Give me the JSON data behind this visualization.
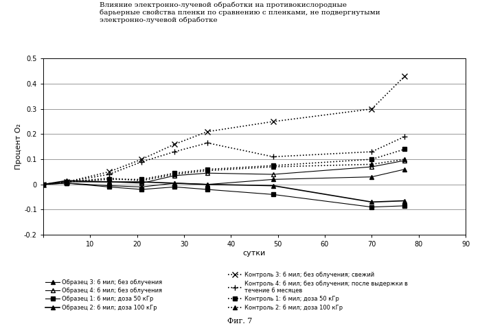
{
  "title_line1": "Влияние электронно-лучевой обработки на противокислородные",
  "title_line2": "барьерные свойства пленки по сравнению с пленками, не подвергнутыми",
  "title_line3": "электронно-лучевой обработке",
  "xlabel": "сутки",
  "ylabel": "Процент О₂",
  "fig_label": "Фиг. 7",
  "xlim": [
    0,
    90
  ],
  "ylim": [
    -0.2,
    0.5
  ],
  "xticks": [
    0,
    10,
    20,
    30,
    40,
    50,
    60,
    70,
    80,
    90
  ],
  "yticks": [
    -0.2,
    -0.1,
    0.0,
    0.1,
    0.2,
    0.3,
    0.4,
    0.5
  ],
  "series": [
    {
      "label": "Образец 3: 6 мил; без облучения",
      "x": [
        0,
        5,
        14,
        21,
        28,
        35,
        49,
        70,
        77
      ],
      "y": [
        0.0,
        0.005,
        -0.005,
        -0.01,
        0.005,
        0.0,
        0.02,
        0.03,
        0.06
      ],
      "color": "black",
      "linestyle": "-",
      "marker": "^",
      "markersize": 4,
      "linewidth": 0.8,
      "fillstyle": "full"
    },
    {
      "label": "Образец 4: 6 мил; без облучения",
      "x": [
        0,
        5,
        14,
        21,
        28,
        35,
        49,
        70,
        77
      ],
      "y": [
        0.0,
        0.01,
        0.01,
        0.005,
        0.035,
        0.045,
        0.04,
        0.07,
        0.095
      ],
      "color": "black",
      "linestyle": "-",
      "marker": "^",
      "markersize": 4,
      "linewidth": 0.8,
      "fillstyle": "none"
    },
    {
      "label": "Образец 1: 6 мил; доза 50 кГр",
      "x": [
        0,
        5,
        14,
        21,
        28,
        35,
        49,
        70,
        77
      ],
      "y": [
        0.0,
        0.005,
        -0.01,
        -0.02,
        -0.01,
        -0.02,
        -0.04,
        -0.09,
        -0.085
      ],
      "color": "black",
      "linestyle": "-",
      "marker": "s",
      "markersize": 4,
      "linewidth": 0.8,
      "fillstyle": "full"
    },
    {
      "label": "Образец 2: 6 мил; доза 100 кГр",
      "x": [
        0,
        5,
        14,
        21,
        28,
        35,
        49,
        70,
        77
      ],
      "y": [
        0.0,
        0.015,
        0.01,
        0.01,
        0.005,
        0.0,
        -0.005,
        -0.07,
        -0.065
      ],
      "color": "black",
      "linestyle": "-",
      "marker": "^",
      "markersize": 5,
      "linewidth": 1.2,
      "fillstyle": "full"
    },
    {
      "label": "Контроль 3: 6 мил; без облучения; свежий",
      "x": [
        0,
        5,
        14,
        21,
        28,
        35,
        49,
        70,
        77
      ],
      "y": [
        0.0,
        0.01,
        0.05,
        0.1,
        0.16,
        0.21,
        0.25,
        0.3,
        0.43
      ],
      "color": "black",
      "linestyle": ":",
      "marker": "x",
      "markersize": 6,
      "linewidth": 1.2,
      "fillstyle": "full"
    },
    {
      "label": "Контроль 4: 6 мил; без облучения; после выдержки в течение 6 месяцев",
      "x": [
        0,
        5,
        14,
        21,
        28,
        35,
        49,
        70,
        77
      ],
      "y": [
        0.0,
        0.01,
        0.04,
        0.09,
        0.13,
        0.165,
        0.11,
        0.13,
        0.19
      ],
      "color": "black",
      "linestyle": ":",
      "marker": "+",
      "markersize": 6,
      "linewidth": 1.2,
      "fillstyle": "full"
    },
    {
      "label": "Контроль 1: 6 мил; доза 50 кГр",
      "x": [
        0,
        5,
        14,
        21,
        28,
        35,
        49,
        70,
        77
      ],
      "y": [
        0.0,
        0.01,
        0.02,
        0.02,
        0.045,
        0.06,
        0.075,
        0.1,
        0.14
      ],
      "color": "black",
      "linestyle": ":",
      "marker": "s",
      "markersize": 4,
      "linewidth": 1.2,
      "fillstyle": "full"
    },
    {
      "label": "Контроль 2: 6 мил; доза 100 кГр",
      "x": [
        0,
        5,
        14,
        21,
        28,
        35,
        49,
        70,
        77
      ],
      "y": [
        0.0,
        0.01,
        0.025,
        0.015,
        0.04,
        0.055,
        0.07,
        0.08,
        0.1
      ],
      "color": "black",
      "linestyle": ":",
      "marker": "^",
      "markersize": 5,
      "linewidth": 1.2,
      "fillstyle": "full"
    }
  ],
  "legend_left": [
    {
      "label": "Образец 3: 6 мил; без облучения",
      "linestyle": "-",
      "marker": "^",
      "fillstyle": "full",
      "linewidth": 0.8,
      "markersize": 4
    },
    {
      "label": "Образец 4: 6 мил; без облучения",
      "linestyle": "-",
      "marker": "^",
      "fillstyle": "none",
      "linewidth": 0.8,
      "markersize": 4
    },
    {
      "label": "Образец 1: 6 мил; доза 50 кГр",
      "linestyle": "-",
      "marker": "s",
      "fillstyle": "full",
      "linewidth": 0.8,
      "markersize": 4
    },
    {
      "label": "Образец 2: 6 мил; доза 100 кГр",
      "linestyle": "-",
      "marker": "^",
      "fillstyle": "full",
      "linewidth": 1.2,
      "markersize": 5
    }
  ],
  "legend_right": [
    {
      "label": "Контроль 3: 6 мил; без облучения; свежий",
      "linestyle": ":",
      "marker": "x",
      "fillstyle": "full",
      "linewidth": 1.2,
      "markersize": 6
    },
    {
      "label": "Контроль 4: 6 мил; без облучения; после выдержки в\nтечение 6 месяцев",
      "linestyle": ":",
      "marker": "+",
      "fillstyle": "full",
      "linewidth": 1.2,
      "markersize": 6
    },
    {
      "label": "Контроль 1: 6 мил; доза 50 кГр",
      "linestyle": ":",
      "marker": "s",
      "fillstyle": "full",
      "linewidth": 1.2,
      "markersize": 4
    },
    {
      "label": "Контроль 2: 6 мил; доза 100 кГр",
      "linestyle": ":",
      "marker": "^",
      "fillstyle": "full",
      "linewidth": 1.2,
      "markersize": 5
    }
  ]
}
